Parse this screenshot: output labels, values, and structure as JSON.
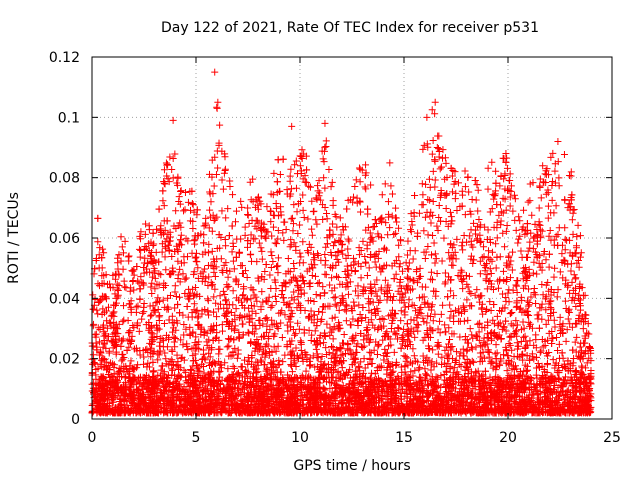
{
  "chart_data": {
    "type": "scatter",
    "title": "Day 122 of 2021, Rate Of TEC Index for receiver p531",
    "xlabel": "GPS time / hours",
    "ylabel": "ROTI / TECUs",
    "xlim": [
      0,
      25
    ],
    "ylim": [
      0,
      0.12
    ],
    "grid": true,
    "marker": "plus",
    "color": "#ff0000",
    "x_ticks": [
      {
        "value": 0,
        "label": "0"
      },
      {
        "value": 5,
        "label": "5"
      },
      {
        "value": 10,
        "label": "10"
      },
      {
        "value": 15,
        "label": "15"
      },
      {
        "value": 20,
        "label": "20"
      },
      {
        "value": 25,
        "label": "25"
      }
    ],
    "y_ticks": [
      {
        "value": 0,
        "label": "0"
      },
      {
        "value": 0.02,
        "label": "0.02"
      },
      {
        "value": 0.04,
        "label": "0.04"
      },
      {
        "value": 0.06,
        "label": "0.06"
      },
      {
        "value": 0.08,
        "label": "0.08"
      },
      {
        "value": 0.1,
        "label": "0.1"
      },
      {
        "value": 0.12,
        "label": "0.12"
      }
    ],
    "envelope": {
      "x": [
        0,
        0.3,
        0.8,
        1.5,
        2.0,
        2.6,
        3.0,
        3.5,
        3.9,
        4.3,
        4.8,
        5.3,
        6.0,
        6.5,
        7.0,
        7.7,
        8.3,
        9.0,
        9.6,
        10.2,
        10.8,
        11.2,
        11.8,
        12.5,
        13.2,
        13.8,
        14.4,
        15.0,
        15.6,
        16.1,
        16.7,
        17.3,
        18.0,
        18.7,
        19.3,
        20.0,
        20.6,
        21.2,
        21.8,
        22.4,
        23.0,
        23.5,
        24.0
      ],
      "upper": [
        0.04,
        0.07,
        0.045,
        0.065,
        0.05,
        0.075,
        0.06,
        0.085,
        0.099,
        0.075,
        0.08,
        0.06,
        0.105,
        0.085,
        0.07,
        0.08,
        0.07,
        0.088,
        0.085,
        0.095,
        0.075,
        0.098,
        0.065,
        0.08,
        0.087,
        0.075,
        0.087,
        0.06,
        0.08,
        0.1,
        0.106,
        0.085,
        0.082,
        0.08,
        0.088,
        0.088,
        0.065,
        0.086,
        0.085,
        0.092,
        0.086,
        0.06,
        0.021
      ],
      "lower": 0.002
    },
    "notable_points": [
      {
        "x": 5.9,
        "y": 0.115
      },
      {
        "x": 6.05,
        "y": 0.105
      },
      {
        "x": 3.9,
        "y": 0.099
      },
      {
        "x": 11.2,
        "y": 0.098
      },
      {
        "x": 16.5,
        "y": 0.105
      },
      {
        "x": 16.1,
        "y": 0.1
      },
      {
        "x": 22.4,
        "y": 0.092
      },
      {
        "x": 19.9,
        "y": 0.088
      },
      {
        "x": 9.6,
        "y": 0.097
      }
    ],
    "point_count_estimate": 6000
  }
}
